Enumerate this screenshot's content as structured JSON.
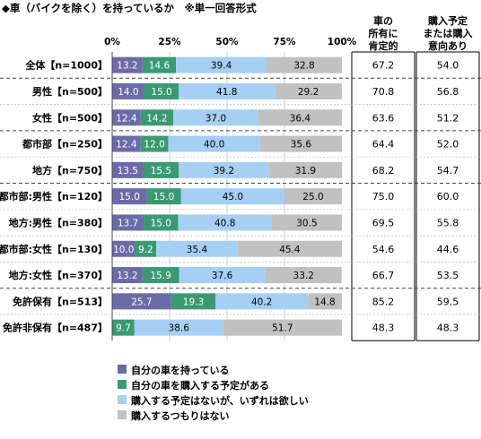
{
  "title": "◆車（バイクを除く）を持っているか　※単一回答形式",
  "columns": {
    "a": [
      "車の",
      "所有に",
      "肯定的"
    ],
    "b": [
      "購入予定",
      "または購入",
      "意向あり"
    ]
  },
  "chart_data": {
    "type": "bar",
    "orientation": "horizontal",
    "stacked": true,
    "xlim": [
      0,
      100
    ],
    "x_ticks": [
      "0%",
      "25%",
      "50%",
      "75%",
      "100%"
    ],
    "categories": [
      "全体【n=1000】",
      "男性【n=500】",
      "女性【n=500】",
      "都市部【n=250】",
      "地方【n=750】",
      "都市部:男性【n=120】",
      "地方:男性【n=380】",
      "都市部:女性【n=130】",
      "地方:女性【n=370】",
      "免許保有【n=513】",
      "免許非保有【n=487】"
    ],
    "series": [
      {
        "name": "自分の車を持っている",
        "color": "#6b6ba8",
        "values": [
          13.2,
          14.0,
          12.4,
          12.4,
          13.5,
          15.0,
          13.7,
          10.0,
          13.2,
          25.7,
          null
        ]
      },
      {
        "name": "自分の車を購入する予定がある",
        "color": "#3a9a72",
        "values": [
          14.6,
          15.0,
          14.2,
          12.0,
          15.5,
          15.0,
          15.0,
          9.2,
          15.9,
          19.3,
          9.7
        ]
      },
      {
        "name": "購入する予定はないが、いずれは欲しい",
        "color": "#a6cff4",
        "values": [
          39.4,
          41.8,
          37.0,
          40.0,
          39.2,
          45.0,
          40.8,
          35.4,
          37.6,
          40.2,
          38.6
        ]
      },
      {
        "name": "購入するつもりはない",
        "color": "#c1c1c1",
        "values": [
          32.8,
          29.2,
          36.4,
          35.6,
          31.9,
          25.0,
          30.5,
          45.4,
          33.2,
          14.8,
          51.7
        ]
      }
    ],
    "column_values": {
      "a": [
        "67.2",
        "70.8",
        "63.6",
        "64.4",
        "68.2",
        "75.0",
        "69.5",
        "54.6",
        "66.7",
        "85.2",
        "48.3"
      ],
      "b": [
        "54.0",
        "56.8",
        "51.2",
        "52.0",
        "54.7",
        "60.0",
        "55.8",
        "44.6",
        "53.5",
        "59.5",
        "48.3"
      ]
    }
  }
}
